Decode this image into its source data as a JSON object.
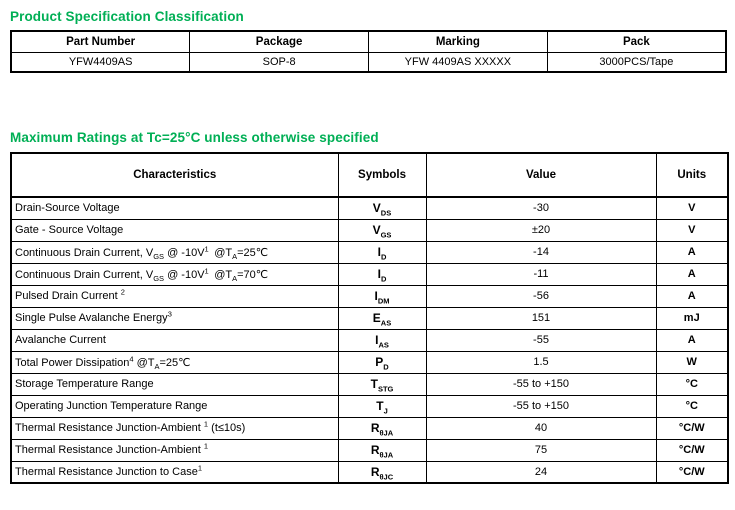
{
  "page": {
    "accent_color": "#00AF55"
  },
  "classification": {
    "title": "Product Specification Classification",
    "table": {
      "headers": [
        "Part Number",
        "Package",
        "Marking",
        "Pack"
      ],
      "rows": [
        [
          "YFW4409AS",
          "SOP-8",
          "YFW 4409AS XXXXX",
          "3000PCS/Tape"
        ]
      ]
    }
  },
  "max_ratings": {
    "title": "Maximum Ratings at Tc=25°C unless otherwise specified",
    "table": {
      "headers": [
        "Characteristics",
        "Symbols",
        "Value",
        "Units"
      ],
      "rows": [
        {
          "characteristic": [
            [
              "t",
              "Drain-Source Voltage"
            ]
          ],
          "symbol": {
            "base": "V",
            "sub": "DS"
          },
          "value": "-30",
          "units": "V"
        },
        {
          "characteristic": [
            [
              "t",
              "Gate - Source Voltage"
            ]
          ],
          "symbol": {
            "base": "V",
            "sub": "GS"
          },
          "value": "±20",
          "units": "V"
        },
        {
          "characteristic": [
            [
              "t",
              "Continuous Drain Current, V"
            ],
            [
              "sub",
              "GS"
            ],
            [
              "t",
              " @ -10V"
            ],
            [
              "sup",
              "1"
            ],
            [
              "t",
              " @T"
            ],
            [
              "sub",
              "A"
            ],
            [
              "t",
              "=25℃"
            ]
          ],
          "symbol": {
            "base": "I",
            "sub": "D"
          },
          "value": "-14",
          "units": "A"
        },
        {
          "characteristic": [
            [
              "t",
              "Continuous Drain Current, V"
            ],
            [
              "sub",
              "GS"
            ],
            [
              "t",
              " @ -10V"
            ],
            [
              "sup",
              "1"
            ],
            [
              "t",
              " @T"
            ],
            [
              "sub",
              "A"
            ],
            [
              "t",
              "=70℃"
            ]
          ],
          "symbol": {
            "base": "I",
            "sub": "D"
          },
          "value": "-11",
          "units": "A"
        },
        {
          "characteristic": [
            [
              "t",
              "Pulsed Drain Current "
            ],
            [
              "sup",
              "2"
            ]
          ],
          "symbol": {
            "base": "I",
            "sub": "DM"
          },
          "value": "-56",
          "units": "A"
        },
        {
          "characteristic": [
            [
              "t",
              "Single Pulse Avalanche Energy"
            ],
            [
              "sup",
              "3"
            ]
          ],
          "symbol": {
            "base": "E",
            "sub": "AS"
          },
          "value": "151",
          "units": "mJ"
        },
        {
          "characteristic": [
            [
              "t",
              "Avalanche Current"
            ]
          ],
          "symbol": {
            "base": "I",
            "sub": "AS"
          },
          "value": "-55",
          "units": "A"
        },
        {
          "characteristic": [
            [
              "t",
              "Total Power Dissipation"
            ],
            [
              "sup",
              "4"
            ],
            [
              "t",
              " @T"
            ],
            [
              "sub",
              "A"
            ],
            [
              "t",
              "=25℃"
            ]
          ],
          "symbol": {
            "base": "P",
            "sub": "D"
          },
          "value": "1.5",
          "units": "W"
        },
        {
          "characteristic": [
            [
              "t",
              "Storage Temperature Range"
            ]
          ],
          "symbol": {
            "base": "T",
            "sub": "STG"
          },
          "value": "-55 to +150",
          "units": "°C"
        },
        {
          "characteristic": [
            [
              "t",
              "Operating Junction Temperature Range"
            ]
          ],
          "symbol": {
            "base": "T",
            "sub": "J"
          },
          "value": "-55 to +150",
          "units": "°C"
        },
        {
          "characteristic": [
            [
              "t",
              "Thermal Resistance Junction-Ambient "
            ],
            [
              "sup",
              "1"
            ],
            [
              "t",
              " (t≤10s)"
            ]
          ],
          "symbol": {
            "base": "R",
            "sub": "θJA"
          },
          "value": "40",
          "units": "°C/W"
        },
        {
          "characteristic": [
            [
              "t",
              "Thermal Resistance Junction-Ambient "
            ],
            [
              "sup",
              "1"
            ]
          ],
          "symbol": {
            "base": "R",
            "sub": "θJA"
          },
          "value": "75",
          "units": "°C/W"
        },
        {
          "characteristic": [
            [
              "t",
              "Thermal Resistance Junction to Case"
            ],
            [
              "sup",
              "1"
            ]
          ],
          "symbol": {
            "base": "R",
            "sub": "θJC"
          },
          "value": "24",
          "units": "°C/W"
        }
      ]
    }
  }
}
